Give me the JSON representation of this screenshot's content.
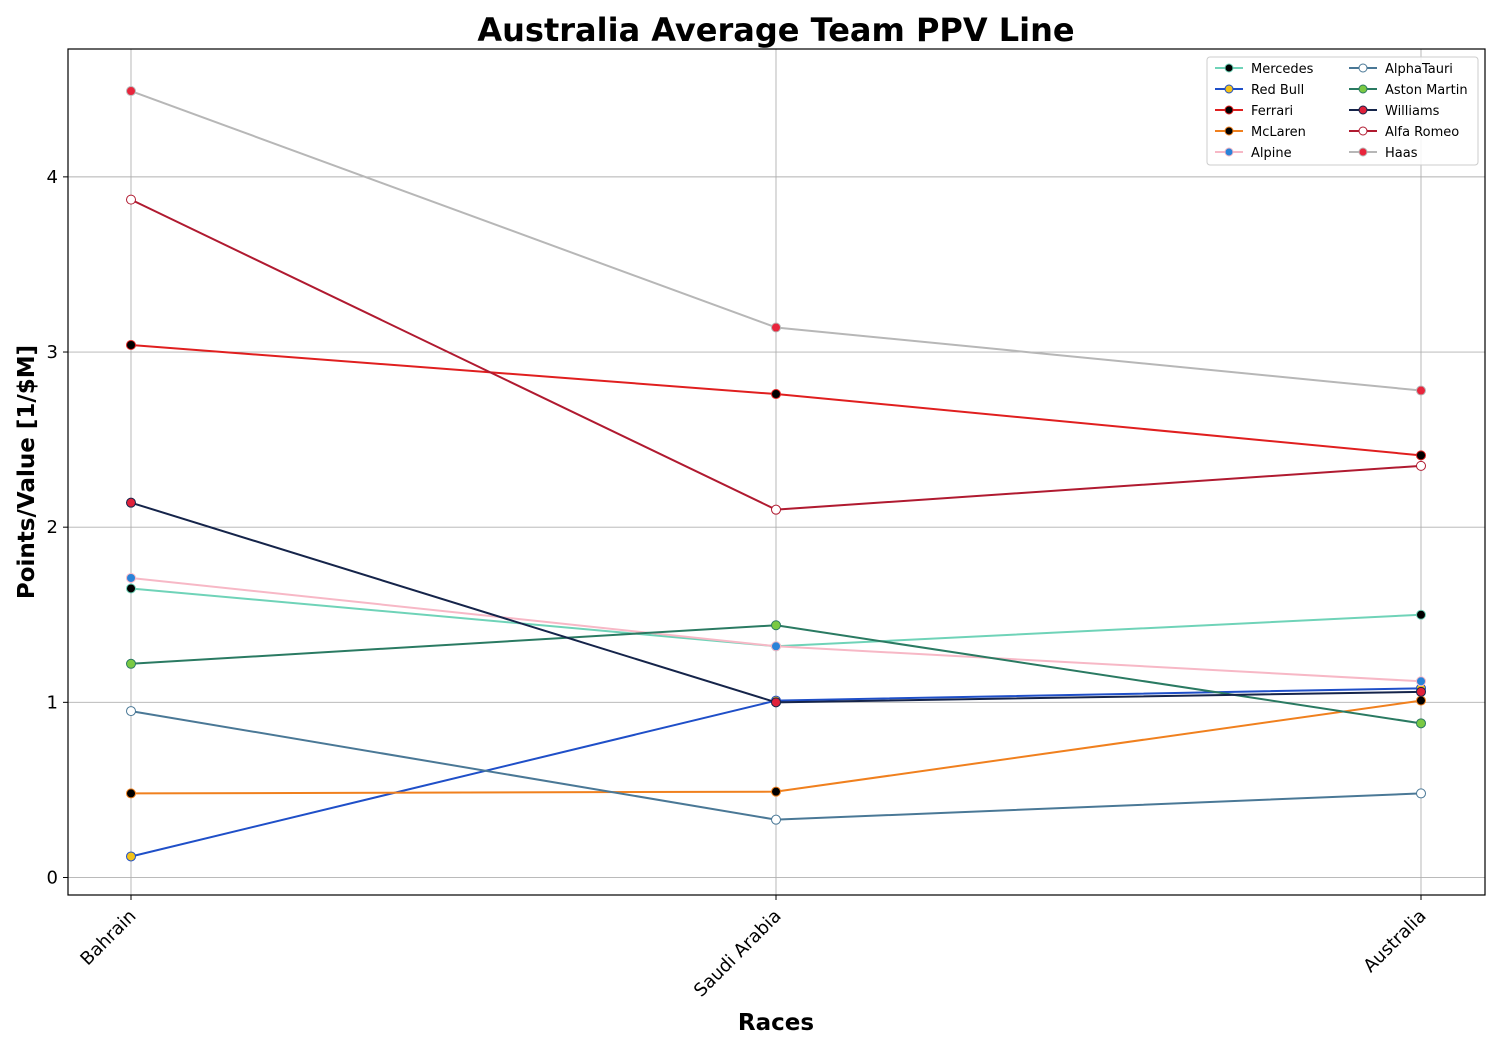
{
  "chart_data": {
    "type": "line",
    "title": "Australia Average Team PPV Line",
    "xlabel": "Races",
    "ylabel": "Points/Value [1/$M]",
    "categories": [
      "Bahrain",
      "Saudi Arabia",
      "Australia"
    ],
    "ylim": [
      -0.1,
      4.73
    ],
    "yticks": [
      0,
      1,
      2,
      3,
      4
    ],
    "grid": true,
    "legend_position": "top-right",
    "legend_columns": 2,
    "series": [
      {
        "name": "Mercedes",
        "values": [
          1.65,
          1.32,
          1.5
        ],
        "line_color": "#6fd3b8",
        "marker_fill": "#000000",
        "marker_edge": "#6fd3b8"
      },
      {
        "name": "Red Bull",
        "values": [
          0.12,
          1.01,
          1.08
        ],
        "line_color": "#1f4fc8",
        "marker_fill": "#f2c21a",
        "marker_edge": "#1f4fc8"
      },
      {
        "name": "Ferrari",
        "values": [
          3.04,
          2.76,
          2.41
        ],
        "line_color": "#e01f1f",
        "marker_fill": "#000000",
        "marker_edge": "#e01f1f"
      },
      {
        "name": "McLaren",
        "values": [
          0.48,
          0.49,
          1.01
        ],
        "line_color": "#f0801e",
        "marker_fill": "#000000",
        "marker_edge": "#f0801e"
      },
      {
        "name": "Alpine",
        "values": [
          1.71,
          1.32,
          1.12
        ],
        "line_color": "#f7b8c6",
        "marker_fill": "#2a83d8",
        "marker_edge": "#f7b8c6"
      },
      {
        "name": "AlphaTauri",
        "values": [
          0.95,
          0.33,
          0.48
        ],
        "line_color": "#4a7896",
        "marker_fill": "#ffffff",
        "marker_edge": "#4a7896"
      },
      {
        "name": "Aston Martin",
        "values": [
          1.22,
          1.44,
          0.88
        ],
        "line_color": "#2a7a62",
        "marker_fill": "#7ac943",
        "marker_edge": "#2a7a62"
      },
      {
        "name": "Williams",
        "values": [
          2.14,
          1.0,
          1.06
        ],
        "line_color": "#15244a",
        "marker_fill": "#e0213a",
        "marker_edge": "#15244a"
      },
      {
        "name": "Alfa Romeo",
        "values": [
          3.87,
          2.1,
          2.35
        ],
        "line_color": "#b01a30",
        "marker_fill": "#ffffff",
        "marker_edge": "#b01a30"
      },
      {
        "name": "Haas",
        "values": [
          4.49,
          3.14,
          2.78
        ],
        "line_color": "#b7b7b7",
        "marker_fill": "#e8253c",
        "marker_edge": "#b7b7b7"
      }
    ]
  }
}
